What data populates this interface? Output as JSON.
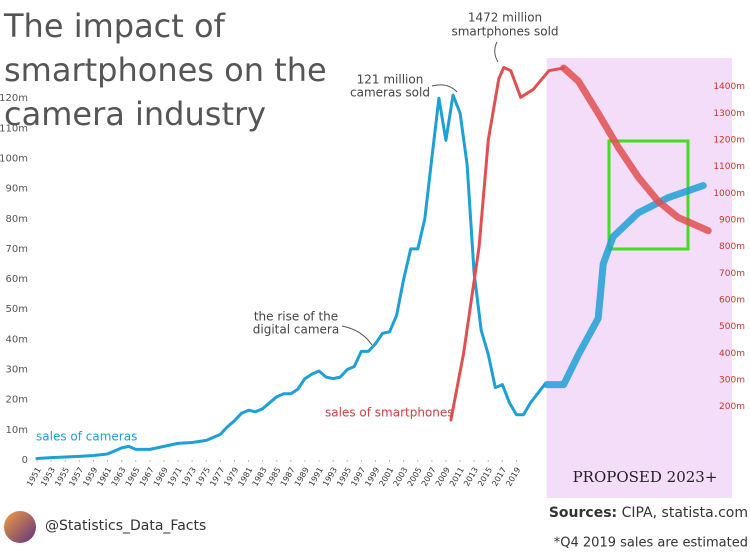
{
  "chart_data": {
    "type": "line",
    "title": "The impact of smartphones on the camera industry",
    "xlim": [
      1950,
      2050
    ],
    "xticks": [
      1951,
      1953,
      1955,
      1957,
      1959,
      1961,
      1963,
      1965,
      1967,
      1969,
      1971,
      1973,
      1975,
      1977,
      1979,
      1981,
      1983,
      1985,
      1987,
      1989,
      1991,
      1993,
      1995,
      1997,
      1999,
      2001,
      2003,
      2005,
      2007,
      2009,
      2011,
      2013,
      2015,
      2017,
      2019
    ],
    "ylim": [
      0,
      130
    ],
    "yticks": [
      0,
      {
        "value": 10,
        "label": "10m"
      },
      {
        "value": 20,
        "label": "20m"
      },
      {
        "value": 30,
        "label": "30m"
      },
      {
        "value": 40,
        "label": "40m"
      },
      {
        "value": 50,
        "label": "50m"
      },
      {
        "value": 60,
        "label": "60m"
      },
      {
        "value": 70,
        "label": "70m"
      },
      {
        "value": 80,
        "label": "80m"
      },
      {
        "value": 90,
        "label": "90m"
      },
      {
        "value": 100,
        "label": "100m"
      },
      {
        "value": 110,
        "label": "110m"
      },
      {
        "value": 120,
        "label": "120m"
      }
    ],
    "y2lim": [
      0,
      1470
    ],
    "y2ticks": [
      {
        "value": 200,
        "label": "200m"
      },
      {
        "value": 300,
        "label": "300m"
      },
      {
        "value": 400,
        "label": "400m"
      },
      {
        "value": 500,
        "label": "500m"
      },
      {
        "value": 600,
        "label": "600m"
      },
      {
        "value": 700,
        "label": "700m"
      },
      {
        "value": 800,
        "label": "800m"
      },
      {
        "value": 900,
        "label": "900m"
      },
      {
        "value": 1000,
        "label": "1000m"
      },
      {
        "value": 1100,
        "label": "1100m"
      },
      {
        "value": 1200,
        "label": "1200m"
      },
      {
        "value": 1300,
        "label": "1300m"
      },
      {
        "value": 1400,
        "label": "1400m"
      }
    ],
    "series": [
      {
        "name": "sales of cameras",
        "color": "#1ea0d6",
        "line_width": 3,
        "x": [
          1951,
          1953,
          1955,
          1957,
          1959,
          1961,
          1963,
          1964,
          1965,
          1967,
          1969,
          1971,
          1973,
          1975,
          1977,
          1978,
          1979,
          1980,
          1981,
          1982,
          1983,
          1984,
          1985,
          1986,
          1987,
          1988,
          1989,
          1990,
          1991,
          1992,
          1993,
          1994,
          1995,
          1996,
          1997,
          1998,
          1999,
          2000,
          2001,
          2002,
          2003,
          2004,
          2005,
          2006,
          2007,
          2008,
          2009,
          2010,
          2011,
          2012,
          2013,
          2014,
          2015,
          2016,
          2017,
          2018,
          2019,
          2020,
          2021,
          2022,
          2023
        ],
        "values": [
          0.5,
          0.8,
          1,
          1.2,
          1.5,
          2,
          4,
          4.5,
          3.5,
          3.5,
          4.5,
          5.5,
          5.8,
          6.5,
          8.5,
          11,
          13,
          15.5,
          16.5,
          16,
          17,
          19,
          21,
          22,
          22,
          23.5,
          27,
          28.5,
          29.5,
          27.5,
          27,
          27.5,
          30,
          31,
          36,
          36,
          38.5,
          42,
          42.5,
          48,
          60,
          70,
          70,
          80,
          100,
          120,
          106,
          121,
          115,
          98,
          62,
          43,
          35,
          24,
          25,
          19,
          15,
          15,
          19,
          22,
          25
        ]
      },
      {
        "color": "#1ea0d6",
        "line_width": 7,
        "x": [
          2023.3,
          2025.7,
          2027.8,
          2030.6,
          2031.3,
          2032.7,
          2036.3,
          2040.5,
          2045.5
        ],
        "values": [
          25,
          25,
          35,
          47,
          65,
          74,
          82,
          87,
          91
        ]
      },
      {
        "name": "sales of smartphones",
        "color": "#e05050",
        "axis": "y2",
        "line_width": 3,
        "x": [
          2009.7,
          2011.5,
          2013.7,
          2015,
          2016.5,
          2017.2,
          2018.2,
          2019.6,
          2021.4,
          2023.6,
          2025.7
        ],
        "values": [
          150,
          400,
          800,
          1200,
          1430,
          1472,
          1460,
          1360,
          1390,
          1460,
          1470
        ]
      },
      {
        "color": "#e05050",
        "axis": "y2",
        "line_width": 7,
        "x": [
          2025.7,
          2027.8,
          2030.6,
          2033.5,
          2036.3,
          2039.1,
          2041.9,
          2046.2
        ],
        "values": [
          1470,
          1420,
          1300,
          1170,
          1060,
          970,
          910,
          860
        ]
      }
    ],
    "annotations": [
      [
        "1472 million",
        "smartphones sold"
      ],
      [
        "121 million",
        "cameras sold"
      ],
      [
        "the rise of the",
        "digital camera"
      ]
    ],
    "proposed_label": "PROPOSED 2023+",
    "handle": "@Statistics_Data_Facts",
    "sources": {
      "label": "Sources:",
      "text": "CIPA, statista.com"
    },
    "note": "*Q4 2019 sales are estimated"
  }
}
